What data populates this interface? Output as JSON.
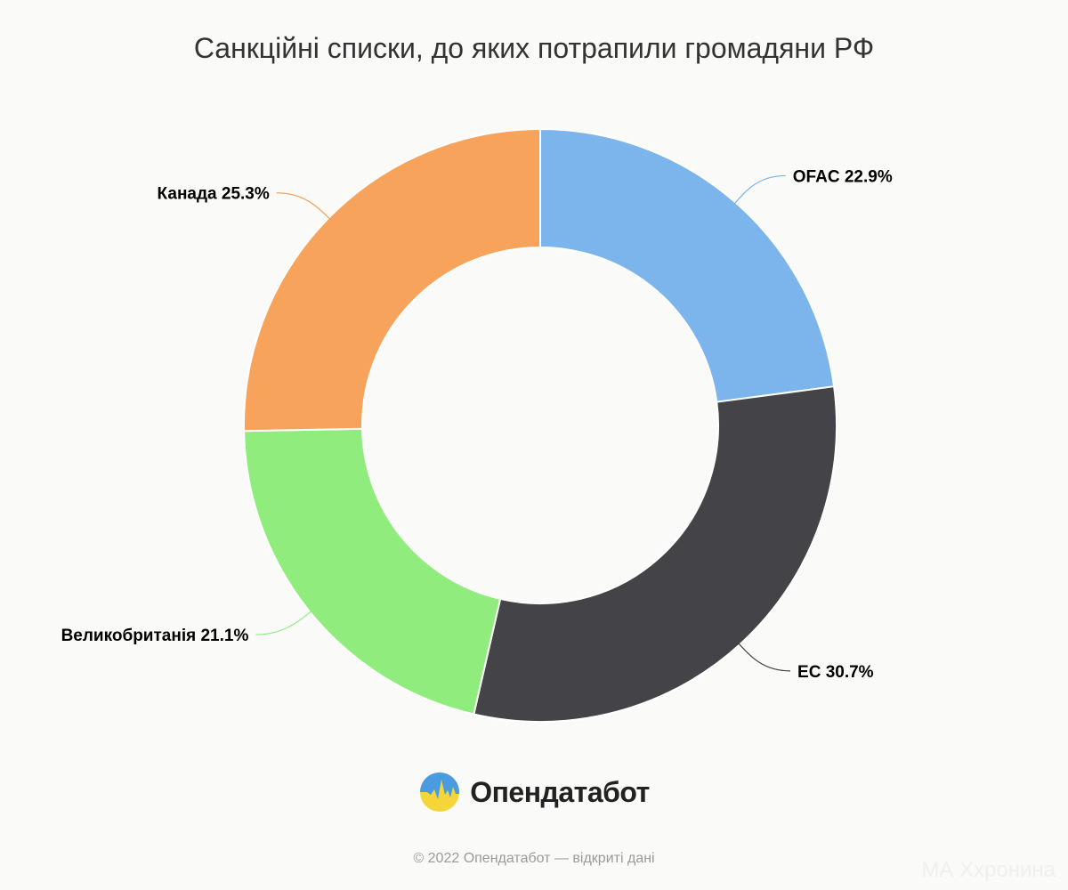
{
  "chart_data": {
    "type": "pie",
    "title": "Санкційні списки, до яких потрапили громадяни РФ",
    "categories": [
      "OFAC",
      "ЕС",
      "Великобританія",
      "Канада"
    ],
    "values": [
      22.9,
      30.7,
      21.1,
      25.3
    ],
    "labels": [
      "OFAC 22.9%",
      "ЕС 30.7%",
      "Великобританія 21.1%",
      "Канада 25.3%"
    ],
    "colors": [
      "#7cb5ec",
      "#434348",
      "#90ed7d",
      "#f7a35c"
    ],
    "unit": "%",
    "donut": true
  },
  "branding": {
    "logo_name": "Опендатабот",
    "logo_icon": "opendatabot-logo-icon"
  },
  "footer": {
    "note": "© 2022 Опендатабот — відкриті дані"
  },
  "watermark": {
    "text": "МА Ххронина"
  }
}
